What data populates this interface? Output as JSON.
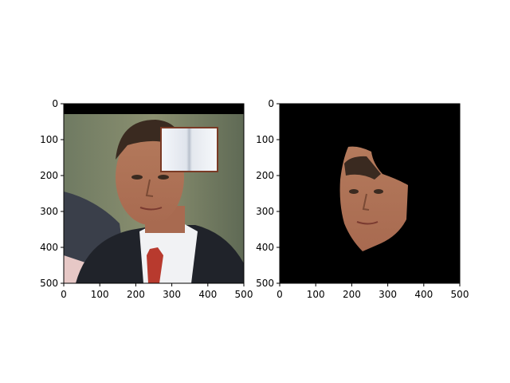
{
  "chart_data": [
    {
      "type": "image",
      "content": "photo",
      "xlim": [
        0,
        500
      ],
      "ylim": [
        500,
        0
      ],
      "xticks": [
        0,
        100,
        200,
        300,
        400,
        500
      ],
      "yticks": [
        0,
        100,
        200,
        300,
        400,
        500
      ],
      "xtick_labels": [
        "0",
        "100",
        "200",
        "300",
        "400",
        "500"
      ],
      "ytick_labels": [
        "0",
        "100",
        "200",
        "300",
        "400",
        "500"
      ],
      "grid": false
    },
    {
      "type": "image",
      "content": "masked-face-on-black",
      "xlim": [
        0,
        500
      ],
      "ylim": [
        500,
        0
      ],
      "xticks": [
        0,
        100,
        200,
        300,
        400,
        500
      ],
      "yticks": [
        0,
        100,
        200,
        300,
        400,
        500
      ],
      "xtick_labels": [
        "0",
        "100",
        "200",
        "300",
        "400",
        "500"
      ],
      "ytick_labels": [
        "0",
        "100",
        "200",
        "300",
        "400",
        "500"
      ],
      "grid": false
    }
  ]
}
